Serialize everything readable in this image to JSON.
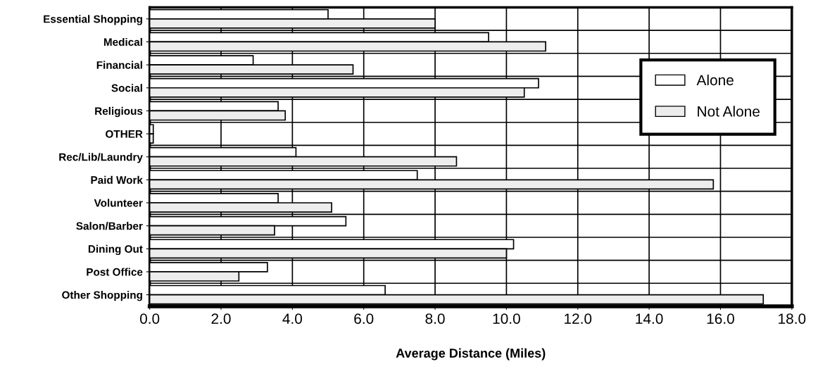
{
  "chart_data": {
    "type": "bar",
    "orientation": "horizontal",
    "categories": [
      "Essential Shopping",
      "Medical",
      "Financial",
      "Social",
      "Religious",
      "OTHER",
      "Rec/Lib/Laundry",
      "Paid Work",
      "Volunteer",
      "Salon/Barber",
      "Dining Out",
      "Post Office",
      "Other Shopping"
    ],
    "series": [
      {
        "name": "Alone",
        "color": "#ffffff",
        "values": [
          5.0,
          9.5,
          2.9,
          10.9,
          3.6,
          0.1,
          4.1,
          7.5,
          3.6,
          5.5,
          10.2,
          3.3,
          6.6
        ]
      },
      {
        "name": "Not Alone",
        "color": "#ededed",
        "values": [
          8.0,
          11.1,
          5.7,
          10.5,
          3.8,
          0.1,
          8.6,
          15.8,
          5.1,
          3.5,
          10.0,
          2.5,
          17.2
        ]
      }
    ],
    "xlabel": "Average Distance (Miles)",
    "xlim": [
      0,
      18
    ],
    "xticks": [
      {
        "value": 0,
        "label": "0.0"
      },
      {
        "value": 2,
        "label": "2.0"
      },
      {
        "value": 4,
        "label": "4.0"
      },
      {
        "value": 6,
        "label": "6.0"
      },
      {
        "value": 8,
        "label": "8.0"
      },
      {
        "value": 10,
        "label": "10.0"
      },
      {
        "value": 12,
        "label": "12.0"
      },
      {
        "value": 14,
        "label": "14.0"
      },
      {
        "value": 16,
        "label": "16.0"
      },
      {
        "value": 18,
        "label": "18.0"
      }
    ],
    "grid": true,
    "legend": "right"
  }
}
